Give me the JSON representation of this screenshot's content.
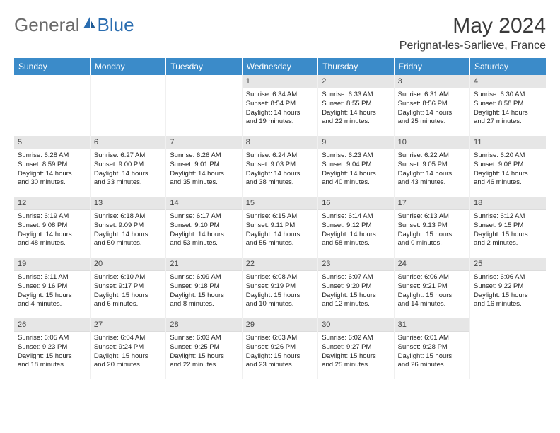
{
  "brand": {
    "gray": "General",
    "blue": "Blue"
  },
  "title": "May 2024",
  "location": "Perignat-les-Sarlieve, France",
  "weekdays": [
    "Sunday",
    "Monday",
    "Tuesday",
    "Wednesday",
    "Thursday",
    "Friday",
    "Saturday"
  ],
  "colors": {
    "header_bg": "#3b8bc9",
    "header_fg": "#ffffff",
    "daynum_bg": "#e6e6e6",
    "text": "#222222"
  },
  "weeks": [
    [
      {
        "empty": true
      },
      {
        "empty": true
      },
      {
        "empty": true
      },
      {
        "day": "1",
        "sunrise": "Sunrise: 6:34 AM",
        "sunset": "Sunset: 8:54 PM",
        "daylight1": "Daylight: 14 hours",
        "daylight2": "and 19 minutes."
      },
      {
        "day": "2",
        "sunrise": "Sunrise: 6:33 AM",
        "sunset": "Sunset: 8:55 PM",
        "daylight1": "Daylight: 14 hours",
        "daylight2": "and 22 minutes."
      },
      {
        "day": "3",
        "sunrise": "Sunrise: 6:31 AM",
        "sunset": "Sunset: 8:56 PM",
        "daylight1": "Daylight: 14 hours",
        "daylight2": "and 25 minutes."
      },
      {
        "day": "4",
        "sunrise": "Sunrise: 6:30 AM",
        "sunset": "Sunset: 8:58 PM",
        "daylight1": "Daylight: 14 hours",
        "daylight2": "and 27 minutes."
      }
    ],
    [
      {
        "day": "5",
        "sunrise": "Sunrise: 6:28 AM",
        "sunset": "Sunset: 8:59 PM",
        "daylight1": "Daylight: 14 hours",
        "daylight2": "and 30 minutes."
      },
      {
        "day": "6",
        "sunrise": "Sunrise: 6:27 AM",
        "sunset": "Sunset: 9:00 PM",
        "daylight1": "Daylight: 14 hours",
        "daylight2": "and 33 minutes."
      },
      {
        "day": "7",
        "sunrise": "Sunrise: 6:26 AM",
        "sunset": "Sunset: 9:01 PM",
        "daylight1": "Daylight: 14 hours",
        "daylight2": "and 35 minutes."
      },
      {
        "day": "8",
        "sunrise": "Sunrise: 6:24 AM",
        "sunset": "Sunset: 9:03 PM",
        "daylight1": "Daylight: 14 hours",
        "daylight2": "and 38 minutes."
      },
      {
        "day": "9",
        "sunrise": "Sunrise: 6:23 AM",
        "sunset": "Sunset: 9:04 PM",
        "daylight1": "Daylight: 14 hours",
        "daylight2": "and 40 minutes."
      },
      {
        "day": "10",
        "sunrise": "Sunrise: 6:22 AM",
        "sunset": "Sunset: 9:05 PM",
        "daylight1": "Daylight: 14 hours",
        "daylight2": "and 43 minutes."
      },
      {
        "day": "11",
        "sunrise": "Sunrise: 6:20 AM",
        "sunset": "Sunset: 9:06 PM",
        "daylight1": "Daylight: 14 hours",
        "daylight2": "and 46 minutes."
      }
    ],
    [
      {
        "day": "12",
        "sunrise": "Sunrise: 6:19 AM",
        "sunset": "Sunset: 9:08 PM",
        "daylight1": "Daylight: 14 hours",
        "daylight2": "and 48 minutes."
      },
      {
        "day": "13",
        "sunrise": "Sunrise: 6:18 AM",
        "sunset": "Sunset: 9:09 PM",
        "daylight1": "Daylight: 14 hours",
        "daylight2": "and 50 minutes."
      },
      {
        "day": "14",
        "sunrise": "Sunrise: 6:17 AM",
        "sunset": "Sunset: 9:10 PM",
        "daylight1": "Daylight: 14 hours",
        "daylight2": "and 53 minutes."
      },
      {
        "day": "15",
        "sunrise": "Sunrise: 6:15 AM",
        "sunset": "Sunset: 9:11 PM",
        "daylight1": "Daylight: 14 hours",
        "daylight2": "and 55 minutes."
      },
      {
        "day": "16",
        "sunrise": "Sunrise: 6:14 AM",
        "sunset": "Sunset: 9:12 PM",
        "daylight1": "Daylight: 14 hours",
        "daylight2": "and 58 minutes."
      },
      {
        "day": "17",
        "sunrise": "Sunrise: 6:13 AM",
        "sunset": "Sunset: 9:13 PM",
        "daylight1": "Daylight: 15 hours",
        "daylight2": "and 0 minutes."
      },
      {
        "day": "18",
        "sunrise": "Sunrise: 6:12 AM",
        "sunset": "Sunset: 9:15 PM",
        "daylight1": "Daylight: 15 hours",
        "daylight2": "and 2 minutes."
      }
    ],
    [
      {
        "day": "19",
        "sunrise": "Sunrise: 6:11 AM",
        "sunset": "Sunset: 9:16 PM",
        "daylight1": "Daylight: 15 hours",
        "daylight2": "and 4 minutes."
      },
      {
        "day": "20",
        "sunrise": "Sunrise: 6:10 AM",
        "sunset": "Sunset: 9:17 PM",
        "daylight1": "Daylight: 15 hours",
        "daylight2": "and 6 minutes."
      },
      {
        "day": "21",
        "sunrise": "Sunrise: 6:09 AM",
        "sunset": "Sunset: 9:18 PM",
        "daylight1": "Daylight: 15 hours",
        "daylight2": "and 8 minutes."
      },
      {
        "day": "22",
        "sunrise": "Sunrise: 6:08 AM",
        "sunset": "Sunset: 9:19 PM",
        "daylight1": "Daylight: 15 hours",
        "daylight2": "and 10 minutes."
      },
      {
        "day": "23",
        "sunrise": "Sunrise: 6:07 AM",
        "sunset": "Sunset: 9:20 PM",
        "daylight1": "Daylight: 15 hours",
        "daylight2": "and 12 minutes."
      },
      {
        "day": "24",
        "sunrise": "Sunrise: 6:06 AM",
        "sunset": "Sunset: 9:21 PM",
        "daylight1": "Daylight: 15 hours",
        "daylight2": "and 14 minutes."
      },
      {
        "day": "25",
        "sunrise": "Sunrise: 6:06 AM",
        "sunset": "Sunset: 9:22 PM",
        "daylight1": "Daylight: 15 hours",
        "daylight2": "and 16 minutes."
      }
    ],
    [
      {
        "day": "26",
        "sunrise": "Sunrise: 6:05 AM",
        "sunset": "Sunset: 9:23 PM",
        "daylight1": "Daylight: 15 hours",
        "daylight2": "and 18 minutes."
      },
      {
        "day": "27",
        "sunrise": "Sunrise: 6:04 AM",
        "sunset": "Sunset: 9:24 PM",
        "daylight1": "Daylight: 15 hours",
        "daylight2": "and 20 minutes."
      },
      {
        "day": "28",
        "sunrise": "Sunrise: 6:03 AM",
        "sunset": "Sunset: 9:25 PM",
        "daylight1": "Daylight: 15 hours",
        "daylight2": "and 22 minutes."
      },
      {
        "day": "29",
        "sunrise": "Sunrise: 6:03 AM",
        "sunset": "Sunset: 9:26 PM",
        "daylight1": "Daylight: 15 hours",
        "daylight2": "and 23 minutes."
      },
      {
        "day": "30",
        "sunrise": "Sunrise: 6:02 AM",
        "sunset": "Sunset: 9:27 PM",
        "daylight1": "Daylight: 15 hours",
        "daylight2": "and 25 minutes."
      },
      {
        "day": "31",
        "sunrise": "Sunrise: 6:01 AM",
        "sunset": "Sunset: 9:28 PM",
        "daylight1": "Daylight: 15 hours",
        "daylight2": "and 26 minutes."
      },
      {
        "empty": true
      }
    ]
  ]
}
